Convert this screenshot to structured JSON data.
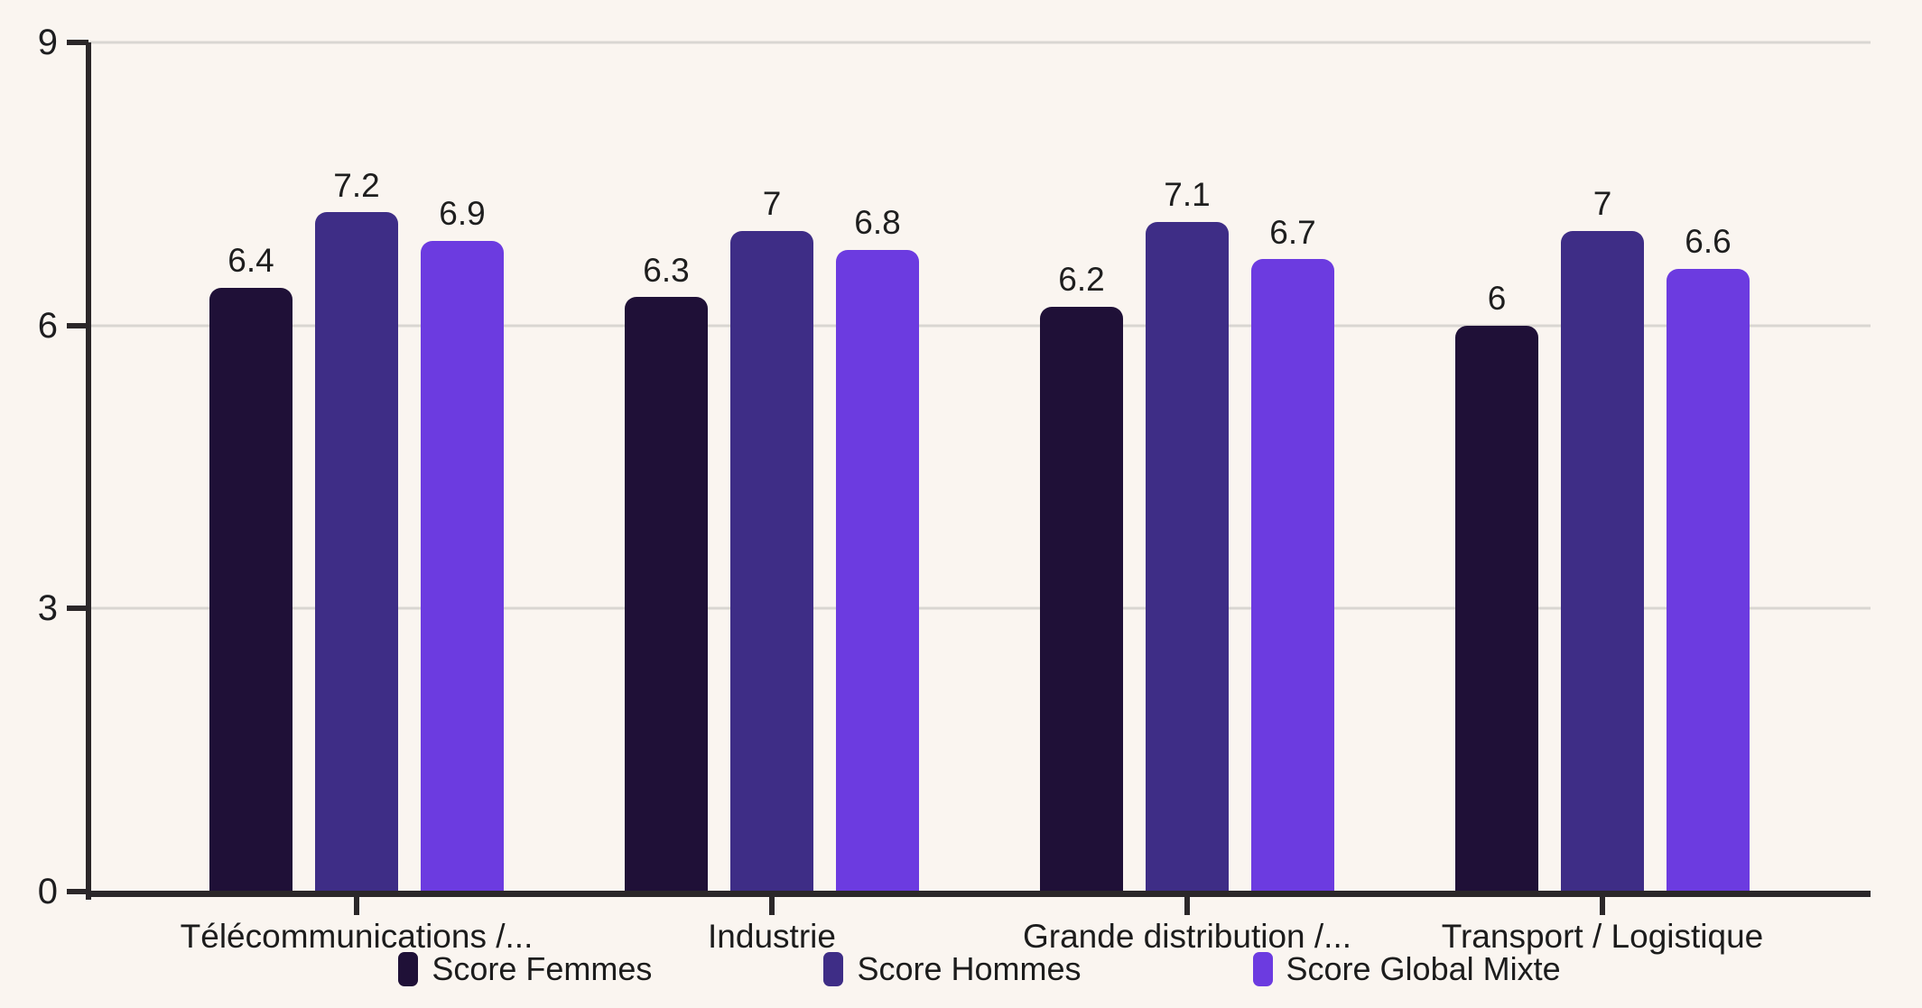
{
  "colors": {
    "background": "#FAF5F0",
    "axis": "#2B2729",
    "gridline": "#D9D6D2",
    "text": "#1D1D1F"
  },
  "chart_data": {
    "type": "bar",
    "categories": [
      "Télécommunications /...",
      "Industrie",
      "Grande distribution /...",
      "Transport / Logistique"
    ],
    "series": [
      {
        "name": "Score Femmes",
        "color": "#1F1037",
        "values": [
          6.4,
          6.3,
          6.2,
          6
        ]
      },
      {
        "name": "Score Hommes",
        "color": "#3E2D86",
        "values": [
          7.2,
          7,
          7.1,
          7
        ]
      },
      {
        "name": "Score Global Mixte",
        "color": "#6C3BE0",
        "values": [
          6.9,
          6.8,
          6.7,
          6.6
        ]
      }
    ],
    "yticks": [
      0,
      3,
      6,
      9
    ],
    "ylim": [
      0,
      9
    ],
    "grid": "horizontal",
    "legend_position": "bottom",
    "title": ""
  }
}
